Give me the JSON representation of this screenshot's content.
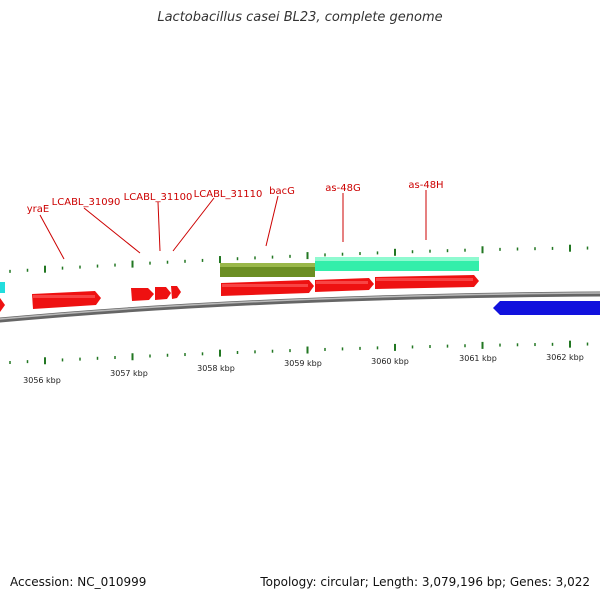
{
  "title": "Lactobacillus casei BL23, complete genome",
  "footer": {
    "accession": "Accession: NC_010999",
    "summary": "Topology: circular; Length: 3,079,196 bp; Genes: 3,022"
  },
  "colors": {
    "gene": "#ee1111",
    "gene_reverse": "#1111dd",
    "cds_olive": "#6b8e23",
    "cds_aqua": "#33eeaa",
    "cds_cyan": "#22dddd",
    "backbone": "#888888",
    "tick": "#227722",
    "label": "#cc0000"
  },
  "gene_labels": [
    "yraE",
    "LCABL_31090",
    "LCABL_31100",
    "LCABL_31110",
    "bacG",
    "as-48G",
    "as-48H"
  ],
  "tick_labels": [
    "3056 kbp",
    "3057 kbp",
    "3058 kbp",
    "3059 kbp",
    "3060 kbp",
    "3061 kbp",
    "3062 kbp"
  ]
}
